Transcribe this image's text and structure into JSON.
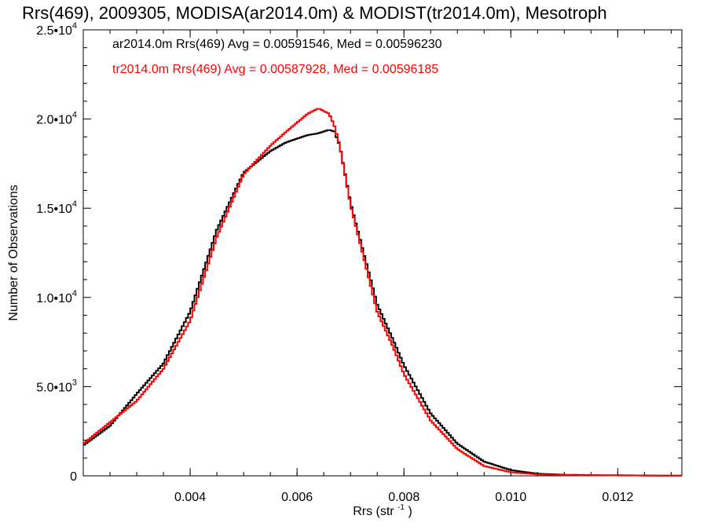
{
  "chart_data": {
    "type": "line",
    "title": "Rrs(469), 2009305, MODISA(ar2014.0m) & MODIST(tr2014.0m), Mesotroph",
    "xlabel": "Rrs (str",
    "xlabel_sup": "-1",
    "xlabel_end": ")",
    "ylabel": "Number of Observations",
    "xlim": [
      0.002,
      0.0132
    ],
    "ylim": [
      0,
      25000
    ],
    "xticks": [
      {
        "value": 0.004,
        "label": "0.004"
      },
      {
        "value": 0.006,
        "label": "0.006"
      },
      {
        "value": 0.008,
        "label": "0.008"
      },
      {
        "value": 0.01,
        "label": "0.010"
      },
      {
        "value": 0.012,
        "label": "0.012"
      }
    ],
    "yticks": [
      {
        "value": 0,
        "label": "0",
        "exp": ""
      },
      {
        "value": 5000,
        "label": "5.0•1",
        "zero": "0",
        "exp": "3"
      },
      {
        "value": 10000,
        "label": "1.0•1",
        "zero": "0",
        "exp": "4"
      },
      {
        "value": 15000,
        "label": "1.5•1",
        "zero": "0",
        "exp": "4"
      },
      {
        "value": 20000,
        "label": "2.0•1",
        "zero": "0",
        "exp": "4"
      },
      {
        "value": 25000,
        "label": "2.5•1",
        "zero": "0",
        "exp": "4"
      }
    ],
    "legend_placement": "top-left",
    "series": [
      {
        "name": "ar2014.0m",
        "color": "#000000",
        "annotation": "ar2014.0m Rrs(469) Avg = 0.00591546, Med = 0.00596230",
        "x": [
          0.002,
          0.0025,
          0.003,
          0.0035,
          0.004,
          0.0045,
          0.005,
          0.0055,
          0.0058,
          0.006,
          0.0062,
          0.0064,
          0.0066,
          0.0067,
          0.0068,
          0.007,
          0.0072,
          0.0075,
          0.0078,
          0.008,
          0.0085,
          0.009,
          0.0095,
          0.01,
          0.0105,
          0.011,
          0.0115,
          0.012,
          0.0125,
          0.013,
          0.0132
        ],
        "values": [
          1700,
          2800,
          4600,
          6300,
          9200,
          13800,
          17000,
          18200,
          18700,
          18900,
          19100,
          19200,
          19400,
          19300,
          18500,
          15300,
          13000,
          9600,
          7600,
          6200,
          3500,
          1800,
          800,
          320,
          120,
          60,
          40,
          30,
          20,
          10,
          10
        ]
      },
      {
        "name": "tr2014.0m",
        "color": "#ff0000",
        "annotation": "tr2014.0m Rrs(469) Avg = 0.00587928, Med = 0.00596185",
        "x": [
          0.002,
          0.0025,
          0.003,
          0.0035,
          0.004,
          0.0045,
          0.005,
          0.0055,
          0.0058,
          0.006,
          0.0062,
          0.0064,
          0.0066,
          0.0067,
          0.0068,
          0.007,
          0.0072,
          0.0075,
          0.0078,
          0.008,
          0.0085,
          0.009,
          0.0095,
          0.01,
          0.0105,
          0.011,
          0.0115,
          0.012,
          0.0125,
          0.013,
          0.0132
        ],
        "values": [
          1800,
          3000,
          4200,
          6000,
          8700,
          13400,
          16900,
          18500,
          19300,
          19800,
          20300,
          20600,
          20300,
          19600,
          18500,
          15200,
          12800,
          9200,
          7200,
          5700,
          3100,
          1500,
          550,
          200,
          80,
          40,
          30,
          20,
          15,
          10,
          10
        ]
      }
    ]
  }
}
